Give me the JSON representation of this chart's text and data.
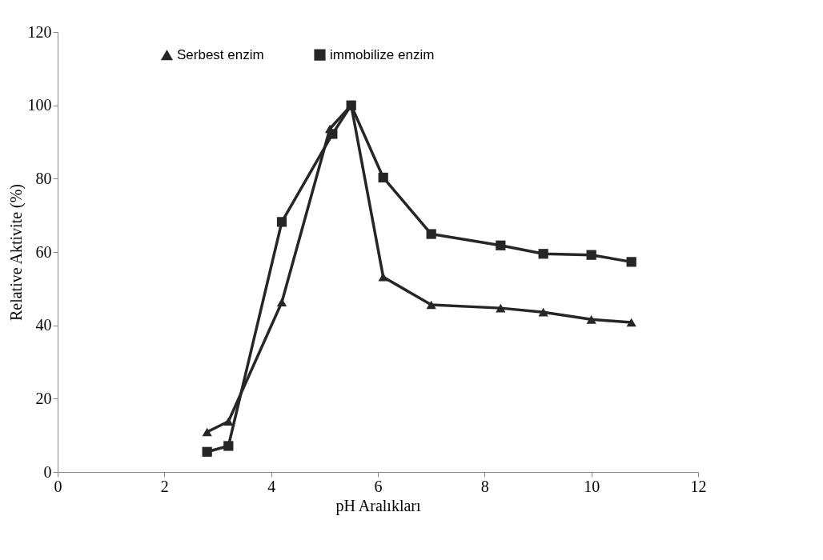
{
  "chart_data": {
    "type": "line",
    "xlabel": "pH Aralıkları",
    "ylabel": "Relative Aktivite (%)",
    "xlim": [
      0,
      12
    ],
    "xticks": [
      0,
      2,
      4,
      6,
      8,
      10,
      12
    ],
    "ylim": [
      0,
      120
    ],
    "yticks": [
      0,
      20,
      40,
      60,
      80,
      100,
      120
    ],
    "grid": false,
    "legend": "top",
    "line_style": "solid",
    "series": [
      {
        "name": "Serbest enzim",
        "color": "#262626",
        "marker": "triangle",
        "x": [
          2.8,
          3.2,
          4.2,
          5.1,
          5.5,
          6.1,
          7.0,
          8.3,
          9.1,
          10.0,
          10.75
        ],
        "values": [
          10.9,
          13.8,
          46.3,
          93.6,
          100,
          53.2,
          45.6,
          44.7,
          43.6,
          41.6,
          40.8
        ]
      },
      {
        "name": "immobilize enzim",
        "color": "#262626",
        "marker": "square",
        "x": [
          2.8,
          3.2,
          4.2,
          5.15,
          5.5,
          6.1,
          7.0,
          8.3,
          9.1,
          10.0,
          10.75
        ],
        "values": [
          5.5,
          7.1,
          68.2,
          92.2,
          100,
          80.3,
          64.9,
          61.8,
          59.5,
          59.2,
          57.3
        ]
      }
    ]
  }
}
